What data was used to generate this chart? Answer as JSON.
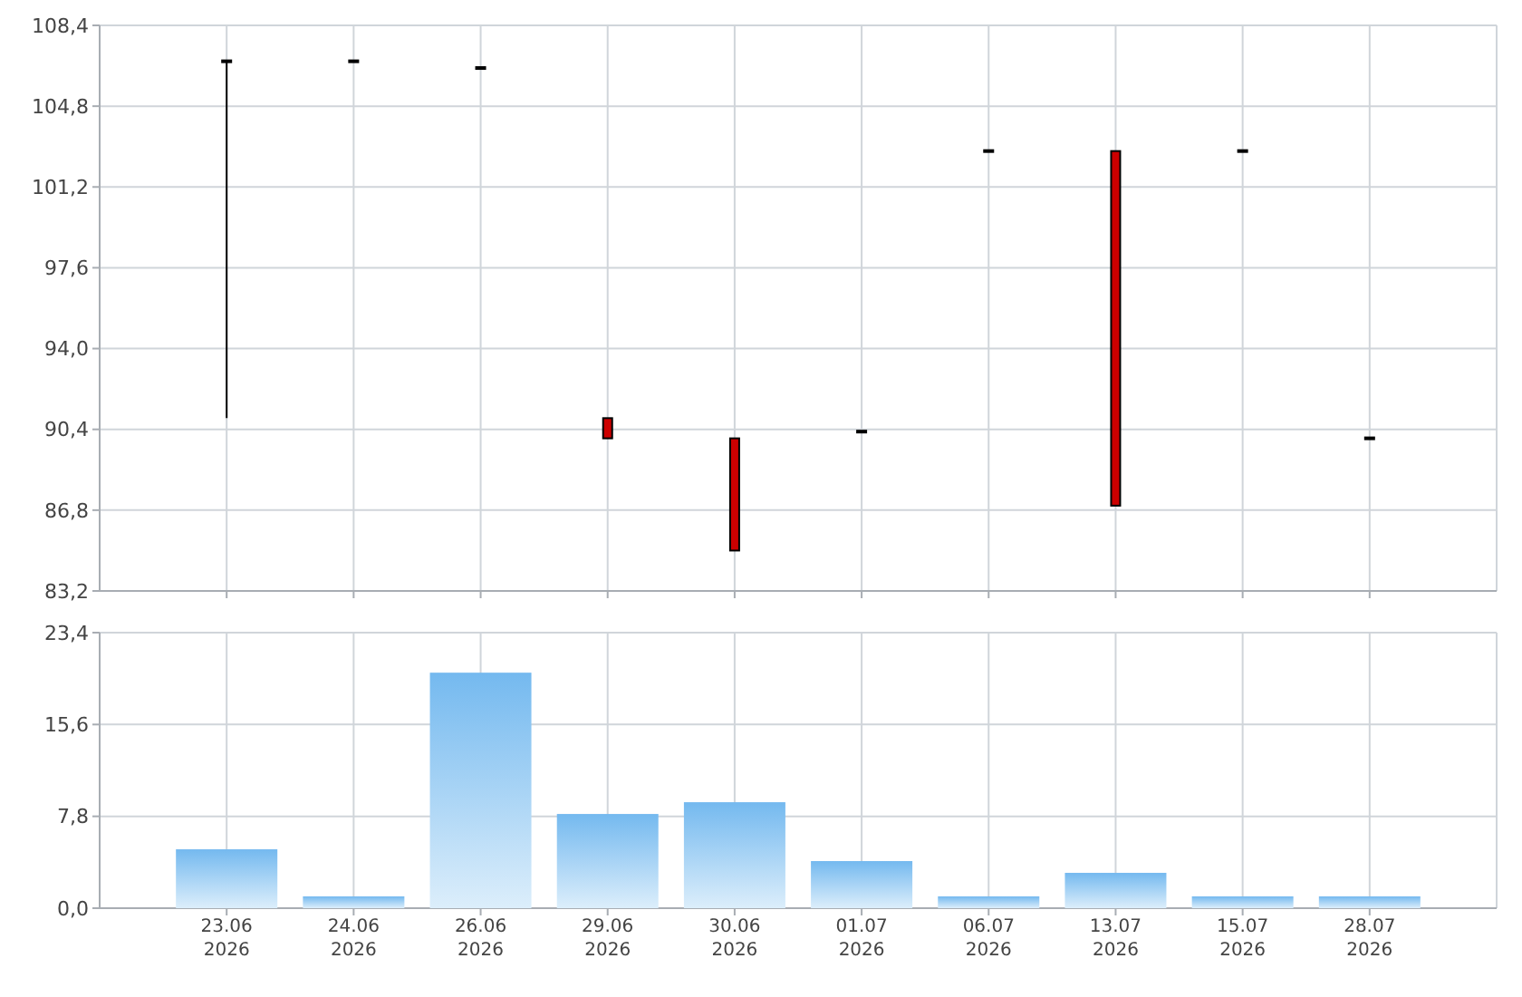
{
  "chart_data": [
    {
      "type": "candlestick",
      "categories": [
        null,
        null,
        null,
        null,
        null,
        null,
        null,
        null,
        null,
        null
      ],
      "ohlc": [
        [
          106.8,
          106.8,
          90.9,
          106.8
        ],
        [
          106.8,
          106.8,
          106.8,
          106.8
        ],
        [
          106.5,
          106.5,
          106.5,
          106.5
        ],
        [
          90.9,
          90.9,
          90.0,
          90.0
        ],
        [
          90.0,
          90.0,
          85.0,
          85.0
        ],
        [
          90.3,
          90.3,
          90.3,
          90.3
        ],
        [
          102.8,
          102.8,
          102.8,
          102.8
        ],
        [
          102.8,
          102.8,
          87.0,
          87.0
        ],
        [
          102.8,
          102.8,
          102.8,
          102.8
        ],
        [
          90.0,
          90.0,
          90.0,
          90.0
        ]
      ],
      "colors": [
        "#000000",
        "#000000",
        "#000000",
        "#cc0000",
        "#cc0000",
        "#000000",
        "#000000",
        "#cc0000",
        "#000000",
        "#000000"
      ],
      "ylim": [
        83.2,
        108.4
      ],
      "yticks": [
        {
          "value": 83.2,
          "label": "83,2"
        },
        {
          "value": 86.8,
          "label": "86,8"
        },
        {
          "value": 90.4,
          "label": "90,4"
        },
        {
          "value": 94.0,
          "label": "94,0"
        },
        {
          "value": 97.6,
          "label": "97,6"
        },
        {
          "value": 101.2,
          "label": "101,2"
        },
        {
          "value": 104.8,
          "label": "104,8"
        },
        {
          "value": 108.4,
          "label": "108,4"
        }
      ],
      "grid": true,
      "tick_labels": "y"
    },
    {
      "type": "bar",
      "categories": [
        "23.06\n2026",
        "24.06\n2026",
        "26.06\n2026",
        "29.06\n2026",
        "30.06\n2026",
        "01.07\n2026",
        "06.07\n2026",
        "13.07\n2026",
        "15.07\n2026",
        "28.07\n2026"
      ],
      "values": [
        5,
        1,
        20,
        8,
        9,
        4,
        1,
        3,
        1,
        1
      ],
      "color": "#74b9ef",
      "ylim": [
        0,
        23.4
      ],
      "yticks": [
        {
          "value": 0,
          "label": "0,0"
        },
        {
          "value": 7.8,
          "label": "7,8"
        },
        {
          "value": 15.6,
          "label": "15,6"
        },
        {
          "value": 23.4,
          "label": "23,4"
        }
      ],
      "grid": true
    }
  ]
}
